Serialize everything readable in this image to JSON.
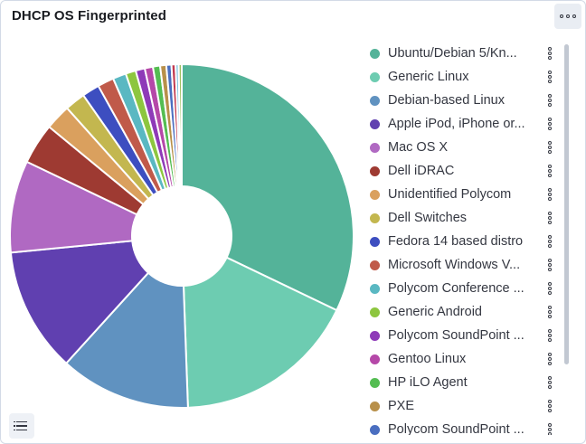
{
  "panel": {
    "title": "DHCP OS Fingerprinted"
  },
  "chart_data": {
    "type": "pie",
    "donut": true,
    "title": "DHCP OS Fingerprinted",
    "legend": "right",
    "slices": [
      {
        "label": "Ubuntu/Debian 5/Kn...",
        "value": 33.4,
        "color": "#54b399"
      },
      {
        "label": "Generic Linux",
        "value": 18.0,
        "color": "#6dccb1"
      },
      {
        "label": "Debian-based Linux",
        "value": 12.8,
        "color": "#6092c0"
      },
      {
        "label": "Apple iPod, iPhone or...",
        "value": 12.2,
        "color": "#6040b0"
      },
      {
        "label": "Mac OS X",
        "value": 9.0,
        "color": "#b069c2"
      },
      {
        "label": "Dell iDRAC",
        "value": 4.0,
        "color": "#9e3a32"
      },
      {
        "label": "Unidentified Polycom",
        "value": 2.5,
        "color": "#daa05e"
      },
      {
        "label": "Dell Switches",
        "value": 2.0,
        "color": "#c3b74f"
      },
      {
        "label": "Fedora 14 based distro",
        "value": 1.7,
        "color": "#3d4ec0"
      },
      {
        "label": "Microsoft Windows V...",
        "value": 1.6,
        "color": "#c05a4a"
      },
      {
        "label": "Polycom Conference ...",
        "value": 1.3,
        "color": "#5ab8c2"
      },
      {
        "label": "Generic Android",
        "value": 1.0,
        "color": "#8dc63f"
      },
      {
        "label": "Polycom SoundPoint ...",
        "value": 0.9,
        "color": "#8e3ab8"
      },
      {
        "label": "Gentoo Linux",
        "value": 0.8,
        "color": "#b548a8"
      },
      {
        "label": "HP iLO Agent",
        "value": 0.7,
        "color": "#54bd52"
      },
      {
        "label": "PXE",
        "value": 0.6,
        "color": "#b8904a"
      },
      {
        "label": "Polycom SoundPoint ...",
        "value": 0.5,
        "color": "#4a6ec0"
      },
      {
        "label": "",
        "value": 0.4,
        "color": "#c23a50"
      },
      {
        "label": "",
        "value": 0.3,
        "color": "#7ec0e0"
      },
      {
        "label": "",
        "value": 0.3,
        "color": "#a0c060"
      }
    ]
  },
  "icons": {
    "options": "ellipsis-icon",
    "legend_toggle": "list-icon",
    "legend_item_menu": "vertical-ellipsis-icon"
  }
}
